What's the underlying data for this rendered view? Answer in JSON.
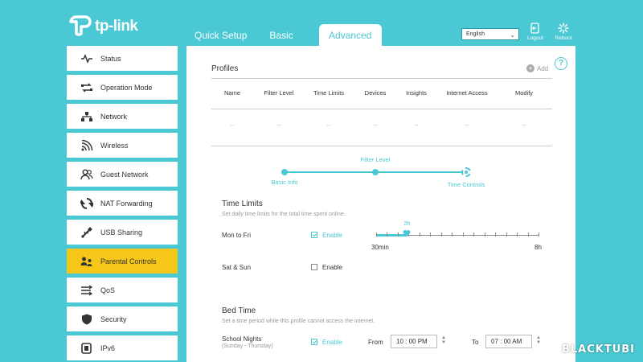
{
  "brand": {
    "name": "tp-link"
  },
  "topnav": {
    "tabs": [
      "Quick Setup",
      "Basic",
      "Advanced"
    ],
    "active": "Advanced"
  },
  "header": {
    "language": "English",
    "logout_label": "Logout",
    "reboot_label": "Reboot"
  },
  "sidebar": {
    "items": [
      {
        "label": "Status",
        "icon": "pulse-icon"
      },
      {
        "label": "Operation Mode",
        "icon": "operation-mode-icon"
      },
      {
        "label": "Network",
        "icon": "network-icon"
      },
      {
        "label": "Wireless",
        "icon": "wifi-icon"
      },
      {
        "label": "Guest Network",
        "icon": "guest-users-icon"
      },
      {
        "label": "NAT Forwarding",
        "icon": "nat-icon"
      },
      {
        "label": "USB Sharing",
        "icon": "usb-icon"
      },
      {
        "label": "Parental Controls",
        "icon": "parental-icon"
      },
      {
        "label": "QoS",
        "icon": "qos-icon"
      },
      {
        "label": "Security",
        "icon": "shield-icon"
      },
      {
        "label": "IPv6",
        "icon": "ipv6-icon"
      }
    ],
    "active": "Parental Controls"
  },
  "profiles": {
    "title": "Profiles",
    "add_label": "Add",
    "columns": [
      "Name",
      "Filter Level",
      "Time Limits",
      "Devices",
      "Insights",
      "Internet Access",
      "Modify"
    ],
    "row": [
      "--",
      "--",
      "--",
      "--",
      "--",
      "--",
      "--"
    ]
  },
  "steps": {
    "labels": [
      "Basic Info",
      "Filter Level",
      "Time Controls"
    ]
  },
  "time_limits": {
    "title": "Time Limits",
    "description": "Set daily time limits for the total time spent online.",
    "mon_fri_label": "Mon to Fri",
    "mon_fri_enabled": true,
    "sat_sun_label": "Sat & Sun",
    "sat_sun_enabled": false,
    "enable_label": "Enable",
    "slider_min": "30min",
    "slider_max": "8h",
    "slider_value": "2h",
    "slider_fraction": 0.19
  },
  "bed_time": {
    "title": "Bed Time",
    "description": "Set a time period while this profile cannot access the internet.",
    "school_nights_label": "School Nights",
    "school_nights_sub": "(Sunday - Thursday)",
    "enabled": true,
    "enable_label": "Enable",
    "from_label": "From",
    "from_value": "10 : 00  PM",
    "to_label": "To",
    "to_value": "07 : 00  AM"
  },
  "watermark": "BLACKTUBI",
  "colors": {
    "accent": "#4ac8d3",
    "active_item": "#f6c718"
  }
}
